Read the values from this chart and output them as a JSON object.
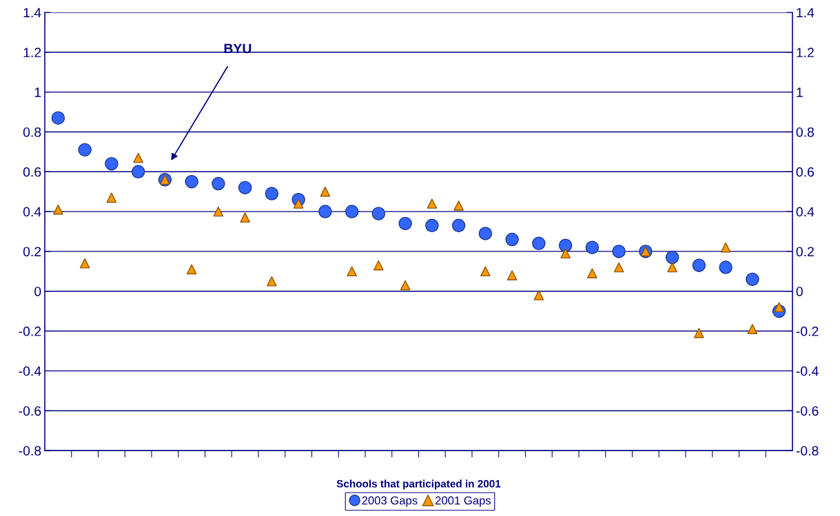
{
  "chart_data": {
    "type": "scatter",
    "xlabel": "Schools that participated in 2001",
    "categories": [
      null,
      null,
      null,
      null,
      null,
      null,
      null,
      null,
      null,
      null,
      null,
      null,
      null,
      null,
      null,
      null,
      null,
      null,
      null,
      null,
      null,
      null,
      null,
      null,
      null,
      null,
      null,
      null
    ],
    "series": [
      {
        "name": "2003 Gaps",
        "color": "#3366ff",
        "marker": "circle",
        "values": [
          0.87,
          0.71,
          0.64,
          0.6,
          0.56,
          0.55,
          0.54,
          0.52,
          0.49,
          0.46,
          0.4,
          0.4,
          0.39,
          0.34,
          0.33,
          0.33,
          0.29,
          0.26,
          0.24,
          0.23,
          0.22,
          0.2,
          0.2,
          0.17,
          0.13,
          0.12,
          0.06,
          -0.1
        ]
      },
      {
        "name": "2001 Gaps",
        "color": "#ff9900",
        "marker": "triangle",
        "values": [
          0.41,
          0.14,
          0.47,
          0.67,
          0.56,
          0.11,
          0.4,
          0.37,
          0.05,
          0.44,
          0.5,
          0.1,
          0.13,
          0.03,
          0.44,
          0.43,
          0.1,
          0.08,
          -0.02,
          0.19,
          0.09,
          0.12,
          0.2,
          0.12,
          -0.21,
          0.22,
          -0.19,
          -0.08
        ]
      }
    ],
    "annotations": [
      "BYU"
    ],
    "ylim": [
      -0.8,
      1.4
    ],
    "yticks": [
      -0.8,
      -0.6,
      -0.4,
      -0.2,
      0,
      0.2,
      0.4,
      0.6,
      0.8,
      1,
      1.2,
      1.4
    ],
    "y2lim": [
      -0.8,
      1.4
    ],
    "y2ticks": [
      -0.8,
      -0.6,
      -0.4,
      -0.2,
      0,
      0.2,
      0.4,
      0.6,
      0.8,
      1,
      1.2,
      1.4
    ],
    "grid": "y",
    "legend": "bottom"
  }
}
